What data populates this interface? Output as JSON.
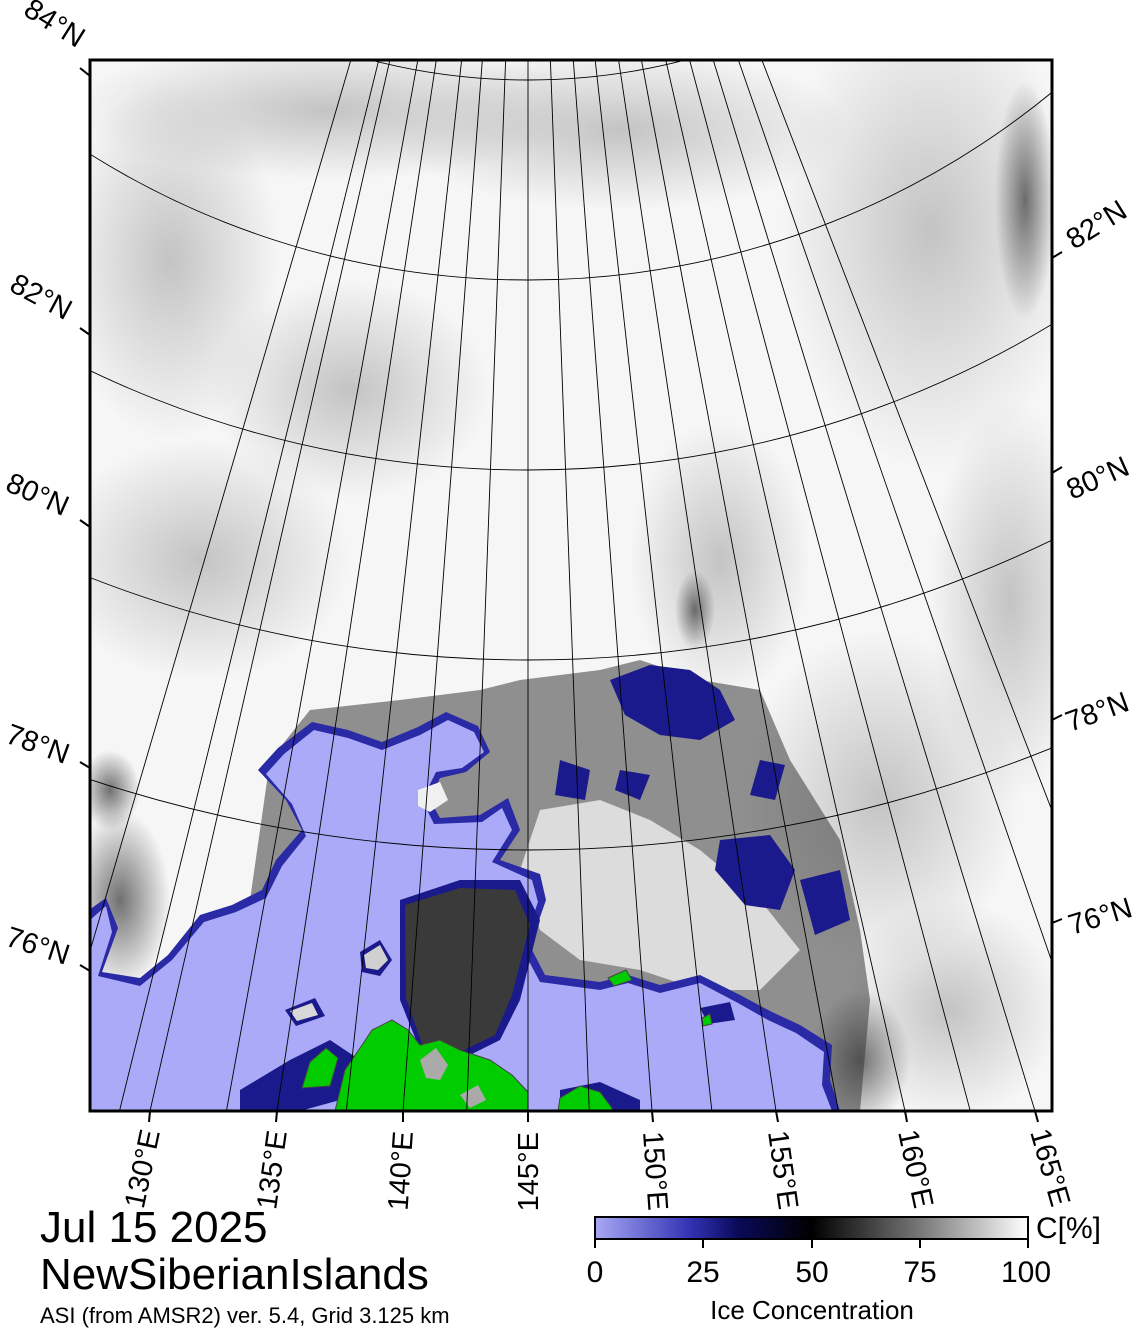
{
  "map": {
    "date": "Jul 15 2025",
    "region": "NewSiberianIslands",
    "source": "ASI (from AMSR2) ver. 5.4,  Grid 3.125 km",
    "latitude_labels": [
      "84°N",
      "82°N",
      "80°N",
      "78°N",
      "76°N"
    ],
    "longitude_labels": [
      "130°E",
      "135°E",
      "140°E",
      "145°E",
      "150°E",
      "155°E",
      "160°E",
      "165°E"
    ],
    "colors": {
      "open_water": "#aaaaf8",
      "low_ice": "#1a1a8c",
      "land": "#00cc00",
      "high_ice": "#ffffff"
    }
  },
  "colorbar": {
    "title": "Ice Concentration",
    "unit": "C[%]",
    "ticks": [
      "0",
      "25",
      "50",
      "75",
      "100"
    ],
    "range": [
      0,
      100
    ]
  }
}
